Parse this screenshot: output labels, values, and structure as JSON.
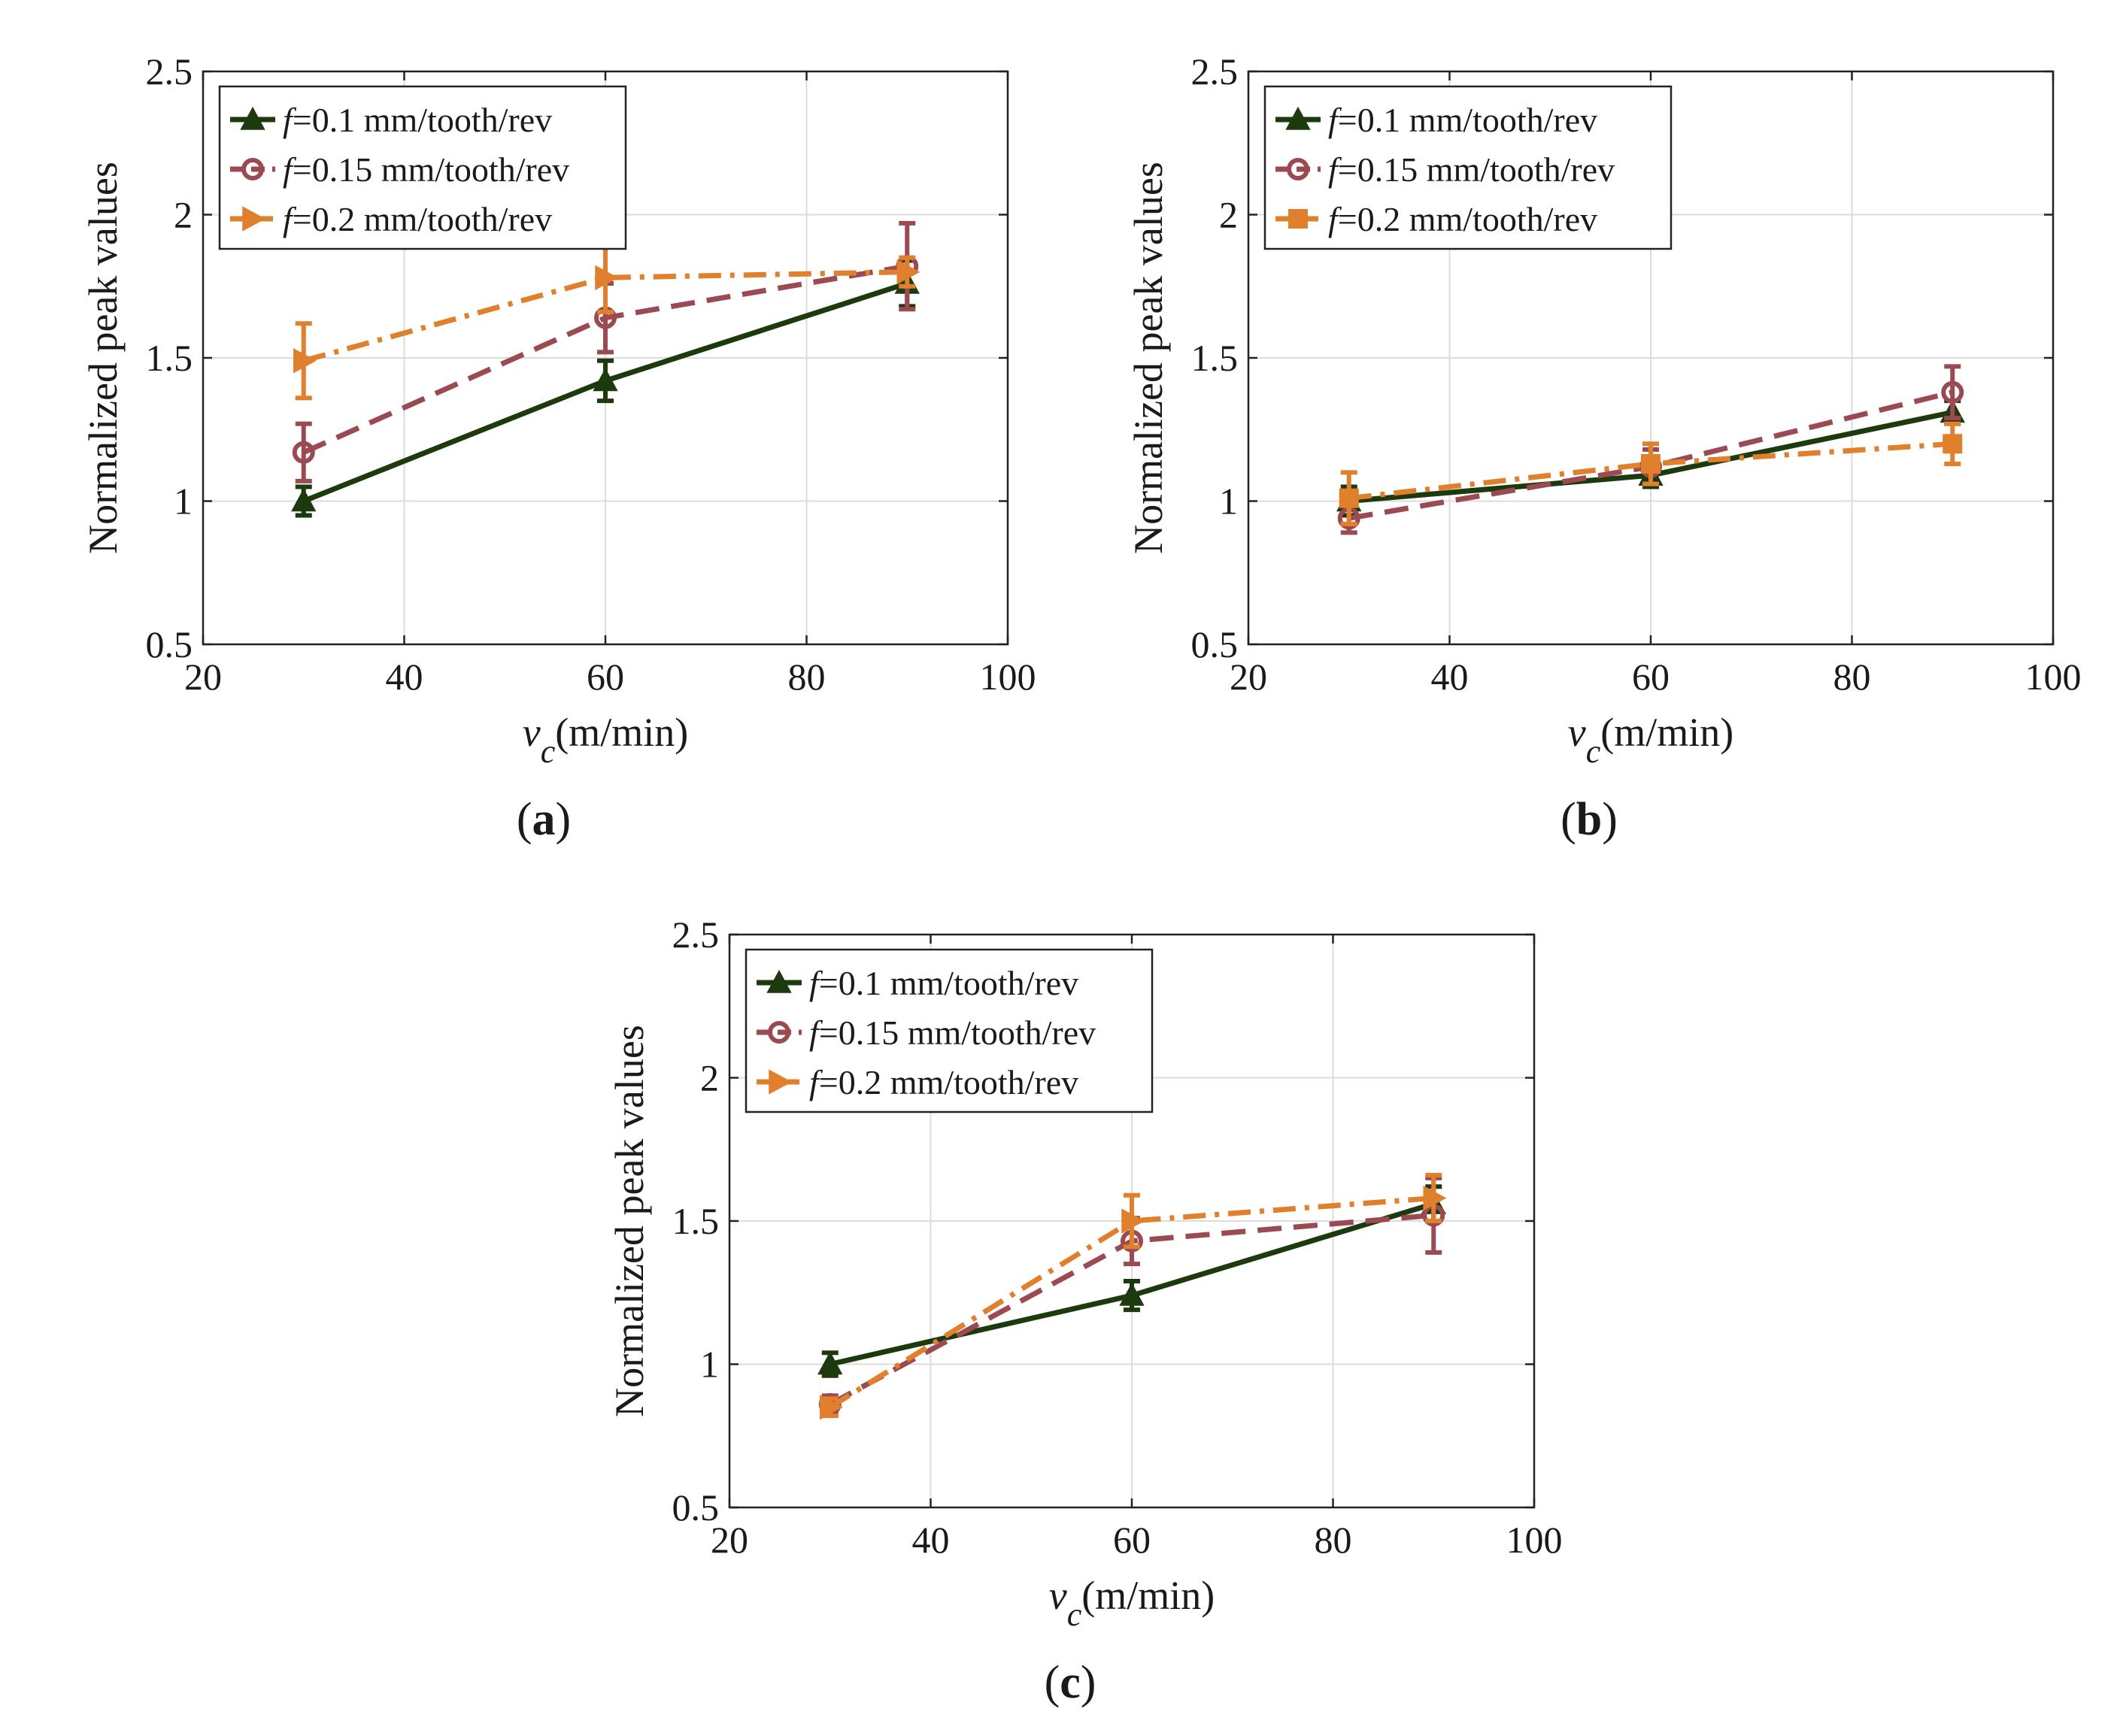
{
  "figure_title": "",
  "chart_data": [
    {
      "type": "line",
      "panel": "(a)",
      "panel_letter": "a",
      "title": "",
      "xlabel_var": "v",
      "xlabel_sub": "c",
      "xlabel_unit": "(m/min)",
      "ylabel": "Normalized peak values",
      "xlim": [
        20,
        100
      ],
      "ylim": [
        0.5,
        2.5
      ],
      "xticks": [
        "20",
        "40",
        "60",
        "80",
        "100"
      ],
      "yticks": [
        "0.5",
        "1",
        "1.5",
        "2",
        "2.5"
      ],
      "grid": true,
      "legend_position": "top-left",
      "x": [
        30,
        60,
        90
      ],
      "series": [
        {
          "name_f": "f",
          "name": "=0.1 mm/tooth/rev",
          "color": "#1d3a0e",
          "marker": "triangle-up",
          "dash": "solid",
          "values": [
            1.0,
            1.42,
            1.76
          ],
          "err": [
            0.05,
            0.07,
            0.08
          ]
        },
        {
          "name_f": "f",
          "name": "=0.15 mm/tooth/rev",
          "color": "#9b4a52",
          "marker": "circle",
          "dash": "dashed",
          "values": [
            1.17,
            1.64,
            1.82
          ],
          "err": [
            0.1,
            0.12,
            0.15
          ]
        },
        {
          "name_f": "f",
          "name": "=0.2 mm/tooth/rev",
          "color": "#e07f2c",
          "marker": "triangle-right",
          "dash": "dashdot",
          "values": [
            1.49,
            1.78,
            1.8
          ],
          "err": [
            0.13,
            0.12,
            0.05
          ]
        }
      ]
    },
    {
      "type": "line",
      "panel": "(b)",
      "panel_letter": "b",
      "title": "",
      "xlabel_var": "v",
      "xlabel_sub": "c",
      "xlabel_unit": "(m/min)",
      "ylabel": "Normalized peak values",
      "xlim": [
        20,
        100
      ],
      "ylim": [
        0.5,
        2.5
      ],
      "xticks": [
        "20",
        "40",
        "60",
        "80",
        "100"
      ],
      "yticks": [
        "0.5",
        "1",
        "1.5",
        "2",
        "2.5"
      ],
      "grid": true,
      "legend_position": "top-left",
      "x": [
        30,
        60,
        90
      ],
      "series": [
        {
          "name_f": "f",
          "name": "=0.1 mm/tooth/rev",
          "color": "#1d3a0e",
          "marker": "triangle-up",
          "dash": "solid",
          "values": [
            1.0,
            1.09,
            1.31
          ],
          "err": [
            0.05,
            0.04,
            0.04
          ]
        },
        {
          "name_f": "f",
          "name": "=0.15 mm/tooth/rev",
          "color": "#9b4a52",
          "marker": "circle",
          "dash": "dashed",
          "values": [
            0.94,
            1.12,
            1.38
          ],
          "err": [
            0.05,
            0.06,
            0.09
          ]
        },
        {
          "name_f": "f",
          "name": "=0.2 mm/tooth/rev",
          "color": "#e07f2c",
          "marker": "square",
          "dash": "dashdot",
          "values": [
            1.01,
            1.13,
            1.2
          ],
          "err": [
            0.09,
            0.07,
            0.07
          ]
        }
      ]
    },
    {
      "type": "line",
      "panel": "(c)",
      "panel_letter": "c",
      "title": "",
      "xlabel_var": "v",
      "xlabel_sub": "c",
      "xlabel_unit": "(m/min)",
      "ylabel": "Normalized peak values",
      "xlim": [
        20,
        100
      ],
      "ylim": [
        0.5,
        2.5
      ],
      "xticks": [
        "20",
        "40",
        "60",
        "80",
        "100"
      ],
      "yticks": [
        "0.5",
        "1",
        "1.5",
        "2",
        "2.5"
      ],
      "grid": true,
      "legend_position": "top-left",
      "x": [
        30,
        60,
        90
      ],
      "series": [
        {
          "name_f": "f",
          "name": "=0.1 mm/tooth/rev",
          "color": "#1d3a0e",
          "marker": "triangle-up",
          "dash": "solid",
          "values": [
            1.0,
            1.24,
            1.56
          ],
          "err": [
            0.04,
            0.05,
            0.06
          ]
        },
        {
          "name_f": "f",
          "name": "=0.15 mm/tooth/rev",
          "color": "#9b4a52",
          "marker": "circle",
          "dash": "dashed",
          "values": [
            0.86,
            1.43,
            1.52
          ],
          "err": [
            0.03,
            0.08,
            0.13
          ]
        },
        {
          "name_f": "f",
          "name": "=0.2 mm/tooth/rev",
          "color": "#e07f2c",
          "marker": "triangle-right",
          "dash": "dashdot",
          "values": [
            0.85,
            1.5,
            1.58
          ],
          "err": [
            0.03,
            0.09,
            0.08
          ]
        }
      ]
    }
  ]
}
